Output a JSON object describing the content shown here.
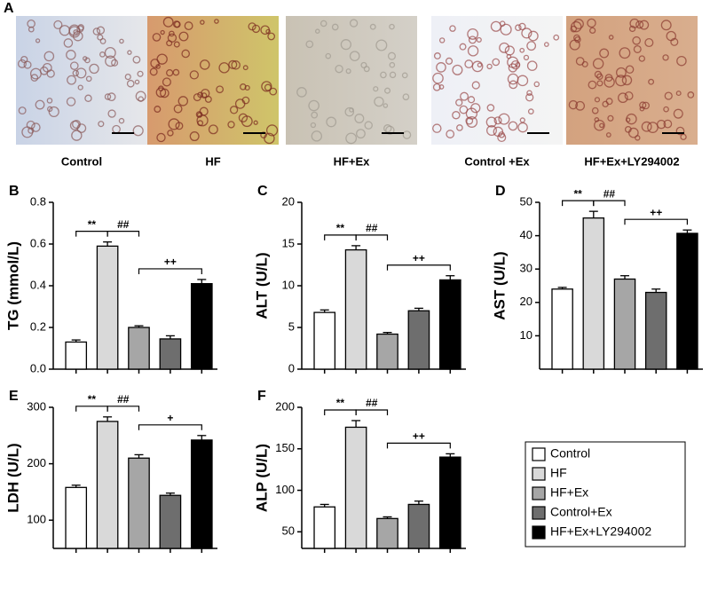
{
  "panel_a": {
    "label": "A",
    "captions": [
      "Control",
      "HF",
      "HF+Ex",
      "Control +Ex",
      "HF+Ex+LY294002"
    ]
  },
  "legend": {
    "labels": [
      "Control",
      "HF",
      "HF+Ex",
      "Control+Ex",
      "HF+Ex+LY294002"
    ],
    "colors": [
      "#ffffff",
      "#d9d9d9",
      "#a6a6a6",
      "#6e6e6e",
      "#000000"
    ]
  },
  "chart_data": [
    {
      "type": "bar",
      "panel": "B",
      "ylabel": "TG (mmol/L)",
      "values": [
        0.13,
        0.59,
        0.2,
        0.145,
        0.41
      ],
      "errors": [
        0.01,
        0.02,
        0.008,
        0.015,
        0.02
      ],
      "ylim": [
        0,
        0.8
      ],
      "yticks": [
        {
          "value": 0,
          "label": "0.0"
        },
        0.2,
        0.4,
        0.6,
        0.8
      ],
      "annotations": [
        "**",
        "##",
        "++"
      ]
    },
    {
      "type": "bar",
      "panel": "C",
      "ylabel": "ALT (U/L)",
      "values": [
        6.8,
        14.3,
        4.2,
        7.0,
        10.7
      ],
      "errors": [
        0.3,
        0.5,
        0.2,
        0.3,
        0.5
      ],
      "ylim": [
        0,
        20
      ],
      "yticks": [
        0,
        5,
        10,
        15,
        20
      ],
      "annotations": [
        "**",
        "##",
        "++"
      ]
    },
    {
      "type": "bar",
      "panel": "D",
      "ylabel": "AST (U/L)",
      "values": [
        24,
        45.3,
        27,
        23,
        40.7
      ],
      "errors": [
        0.5,
        2,
        1,
        1,
        1
      ],
      "ylim": [
        0,
        50
      ],
      "yticks": [
        10,
        20,
        30,
        40,
        50
      ],
      "annotations": [
        "**",
        "##",
        "++"
      ]
    },
    {
      "type": "bar",
      "panel": "E",
      "ylabel": "LDH (U/L)",
      "values": [
        158,
        275,
        210,
        144,
        242
      ],
      "errors": [
        4,
        8,
        6,
        4,
        8
      ],
      "ylim": [
        50,
        300
      ],
      "yticks": [
        100,
        200,
        300
      ],
      "annotations": [
        "**",
        "##",
        "+"
      ]
    },
    {
      "type": "bar",
      "panel": "F",
      "ylabel": "ALP (U/L)",
      "values": [
        80,
        176,
        66,
        83,
        140
      ],
      "errors": [
        3,
        8,
        2,
        4,
        4
      ],
      "ylim": [
        30,
        200
      ],
      "yticks": [
        50,
        100,
        150,
        200
      ],
      "annotations": [
        "**",
        "##",
        "++"
      ]
    }
  ]
}
